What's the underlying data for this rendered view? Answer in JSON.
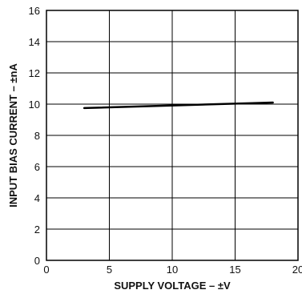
{
  "chart_data": {
    "type": "line",
    "title": "",
    "xlabel": "SUPPLY VOLTAGE – ±V",
    "ylabel": "INPUT BIAS CURRENT – ±nA",
    "xlim": [
      0,
      20
    ],
    "ylim": [
      0,
      16
    ],
    "x_ticks": [
      0,
      5,
      10,
      15,
      20
    ],
    "x_tick_labels": [
      "0",
      "5",
      "10",
      "15",
      "20"
    ],
    "y_ticks": [
      0,
      2,
      4,
      6,
      8,
      10,
      12,
      14,
      16
    ],
    "y_tick_labels": [
      "0",
      "2",
      "4",
      "6",
      "8",
      "10",
      "12",
      "14",
      "16"
    ],
    "grid": true,
    "legend": "none",
    "series": [
      {
        "x": [
          3,
          18
        ],
        "y": [
          9.75,
          10.1
        ],
        "color": "#000000"
      }
    ]
  }
}
